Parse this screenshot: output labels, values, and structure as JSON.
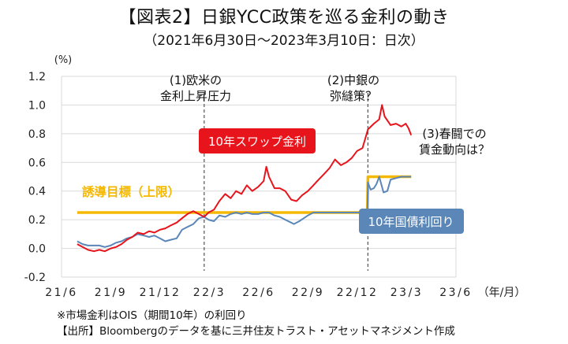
{
  "title": "【図表2】日銀YCC政策を巡る金利の動き",
  "subtitle": "（2021年6月30日～2023年3月10日：日次）",
  "notes": [
    "※市場金利はOIS（期間10年）の利回り",
    "【出所】Bloombergのデータを基に三井住友トラスト・アセットマネジメント作成"
  ],
  "colors": {
    "swap": "#e8141b",
    "jgb": "#5a86b8",
    "cap": "#f5b800"
  },
  "chart_data": {
    "type": "line",
    "ylabel": "(%)",
    "xlabel": "（年/月）",
    "ylim": [
      -0.2,
      1.2
    ],
    "yticks": [
      "-0.2",
      "0.0",
      "0.2",
      "0.4",
      "0.6",
      "0.8",
      "1.0",
      "1.2"
    ],
    "xticks": [
      "21/6",
      "21/9",
      "21/12",
      "22/3",
      "22/6",
      "22/9",
      "22/12",
      "23/3",
      "23/6"
    ],
    "xrange": [
      "2021-06",
      "2023-06"
    ],
    "grid": true,
    "annotations": [
      {
        "label": "(1)欧米の",
        "label2": "金利上昇圧力",
        "x": "2022-02-20"
      },
      {
        "label": "(2)中銀の",
        "label2": "弥縫策？",
        "x": "2022-12-20"
      },
      {
        "label": "(3)春闘での",
        "label2": "賃金動向は？"
      }
    ],
    "series": [
      {
        "name": "10年スワップ金利",
        "color": "#e8141b",
        "points": [
          [
            "2021-06-30",
            0.03
          ],
          [
            "2021-07-10",
            0.01
          ],
          [
            "2021-07-20",
            -0.01
          ],
          [
            "2021-07-31",
            -0.02
          ],
          [
            "2021-08-10",
            -0.01
          ],
          [
            "2021-08-20",
            -0.02
          ],
          [
            "2021-08-31",
            0.0
          ],
          [
            "2021-09-10",
            0.01
          ],
          [
            "2021-09-20",
            0.03
          ],
          [
            "2021-09-30",
            0.06
          ],
          [
            "2021-10-10",
            0.08
          ],
          [
            "2021-10-20",
            0.11
          ],
          [
            "2021-10-31",
            0.1
          ],
          [
            "2021-11-10",
            0.12
          ],
          [
            "2021-11-20",
            0.11
          ],
          [
            "2021-11-30",
            0.13
          ],
          [
            "2021-12-10",
            0.14
          ],
          [
            "2021-12-20",
            0.16
          ],
          [
            "2021-12-31",
            0.18
          ],
          [
            "2022-01-10",
            0.21
          ],
          [
            "2022-01-20",
            0.24
          ],
          [
            "2022-01-31",
            0.26
          ],
          [
            "2022-02-10",
            0.24
          ],
          [
            "2022-02-20",
            0.22
          ],
          [
            "2022-02-28",
            0.25
          ],
          [
            "2022-03-10",
            0.27
          ],
          [
            "2022-03-20",
            0.33
          ],
          [
            "2022-03-31",
            0.38
          ],
          [
            "2022-04-10",
            0.35
          ],
          [
            "2022-04-20",
            0.4
          ],
          [
            "2022-04-30",
            0.38
          ],
          [
            "2022-05-10",
            0.44
          ],
          [
            "2022-05-20",
            0.4
          ],
          [
            "2022-05-31",
            0.43
          ],
          [
            "2022-06-10",
            0.47
          ],
          [
            "2022-06-15",
            0.57
          ],
          [
            "2022-06-20",
            0.5
          ],
          [
            "2022-06-30",
            0.42
          ],
          [
            "2022-07-10",
            0.42
          ],
          [
            "2022-07-20",
            0.4
          ],
          [
            "2022-07-31",
            0.34
          ],
          [
            "2022-08-10",
            0.33
          ],
          [
            "2022-08-20",
            0.37
          ],
          [
            "2022-08-31",
            0.4
          ],
          [
            "2022-09-10",
            0.44
          ],
          [
            "2022-09-20",
            0.48
          ],
          [
            "2022-09-30",
            0.52
          ],
          [
            "2022-10-10",
            0.56
          ],
          [
            "2022-10-20",
            0.62
          ],
          [
            "2022-10-31",
            0.58
          ],
          [
            "2022-11-10",
            0.6
          ],
          [
            "2022-11-20",
            0.63
          ],
          [
            "2022-11-30",
            0.68
          ],
          [
            "2022-12-10",
            0.7
          ],
          [
            "2022-12-20",
            0.83
          ],
          [
            "2022-12-31",
            0.87
          ],
          [
            "2023-01-10",
            0.9
          ],
          [
            "2023-01-15",
            1.0
          ],
          [
            "2023-01-20",
            0.92
          ],
          [
            "2023-01-31",
            0.86
          ],
          [
            "2023-02-10",
            0.87
          ],
          [
            "2023-02-20",
            0.85
          ],
          [
            "2023-02-28",
            0.87
          ],
          [
            "2023-03-05",
            0.84
          ],
          [
            "2023-03-10",
            0.79
          ]
        ]
      },
      {
        "name": "10年国債利回り",
        "color": "#5a86b8",
        "points": [
          [
            "2021-06-30",
            0.05
          ],
          [
            "2021-07-10",
            0.03
          ],
          [
            "2021-07-20",
            0.02
          ],
          [
            "2021-07-31",
            0.02
          ],
          [
            "2021-08-10",
            0.02
          ],
          [
            "2021-08-20",
            0.01
          ],
          [
            "2021-08-31",
            0.02
          ],
          [
            "2021-09-10",
            0.04
          ],
          [
            "2021-09-20",
            0.05
          ],
          [
            "2021-09-30",
            0.07
          ],
          [
            "2021-10-10",
            0.08
          ],
          [
            "2021-10-20",
            0.1
          ],
          [
            "2021-10-31",
            0.09
          ],
          [
            "2021-11-10",
            0.08
          ],
          [
            "2021-11-20",
            0.09
          ],
          [
            "2021-11-30",
            0.07
          ],
          [
            "2021-12-10",
            0.05
          ],
          [
            "2021-12-20",
            0.06
          ],
          [
            "2021-12-31",
            0.07
          ],
          [
            "2022-01-10",
            0.13
          ],
          [
            "2022-01-20",
            0.15
          ],
          [
            "2022-01-31",
            0.17
          ],
          [
            "2022-02-10",
            0.21
          ],
          [
            "2022-02-20",
            0.22
          ],
          [
            "2022-02-28",
            0.2
          ],
          [
            "2022-03-10",
            0.19
          ],
          [
            "2022-03-20",
            0.23
          ],
          [
            "2022-03-31",
            0.22
          ],
          [
            "2022-04-10",
            0.24
          ],
          [
            "2022-04-20",
            0.25
          ],
          [
            "2022-04-30",
            0.24
          ],
          [
            "2022-05-10",
            0.25
          ],
          [
            "2022-05-20",
            0.24
          ],
          [
            "2022-05-31",
            0.24
          ],
          [
            "2022-06-10",
            0.25
          ],
          [
            "2022-06-20",
            0.25
          ],
          [
            "2022-06-30",
            0.23
          ],
          [
            "2022-07-10",
            0.22
          ],
          [
            "2022-07-20",
            0.2
          ],
          [
            "2022-07-31",
            0.18
          ],
          [
            "2022-08-05",
            0.17
          ],
          [
            "2022-08-15",
            0.19
          ],
          [
            "2022-08-31",
            0.23
          ],
          [
            "2022-09-10",
            0.25
          ],
          [
            "2022-09-20",
            0.25
          ],
          [
            "2022-09-30",
            0.25
          ],
          [
            "2022-10-10",
            0.25
          ],
          [
            "2022-10-20",
            0.25
          ],
          [
            "2022-10-31",
            0.25
          ],
          [
            "2022-11-10",
            0.25
          ],
          [
            "2022-11-20",
            0.25
          ],
          [
            "2022-11-30",
            0.25
          ],
          [
            "2022-12-10",
            0.25
          ],
          [
            "2022-12-19",
            0.25
          ],
          [
            "2022-12-20",
            0.46
          ],
          [
            "2022-12-25",
            0.41
          ],
          [
            "2022-12-31",
            0.42
          ],
          [
            "2023-01-05",
            0.45
          ],
          [
            "2023-01-10",
            0.5
          ],
          [
            "2023-01-18",
            0.39
          ],
          [
            "2023-01-25",
            0.4
          ],
          [
            "2023-01-31",
            0.48
          ],
          [
            "2023-02-10",
            0.49
          ],
          [
            "2023-02-20",
            0.5
          ],
          [
            "2023-02-28",
            0.5
          ],
          [
            "2023-03-05",
            0.5
          ],
          [
            "2023-03-10",
            0.5
          ]
        ]
      },
      {
        "name": "誘導目標（上限）",
        "color": "#f5b800",
        "points": [
          [
            "2021-06-30",
            0.25
          ],
          [
            "2022-12-19",
            0.25
          ],
          [
            "2022-12-20",
            0.5
          ],
          [
            "2023-03-10",
            0.5
          ]
        ]
      }
    ]
  }
}
